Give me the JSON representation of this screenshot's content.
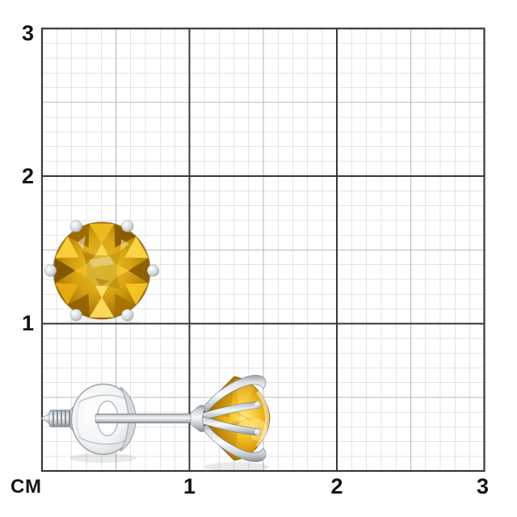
{
  "figure": {
    "unit_label": "СМ",
    "x_axis_labels": [
      "1",
      "2",
      "3"
    ],
    "y_axis_labels": [
      "3",
      "2",
      "1"
    ],
    "grid_colors": {
      "background": "#ffffff",
      "minor": "#c9c9c9",
      "mid": "#8e8e8e",
      "major": "#383838",
      "label": "#141414"
    },
    "front_earring": {
      "prong_count": 6,
      "gem_shape": "round"
    },
    "gem_palette": {
      "outer_facets": [
        "#8a5c00",
        "#f7c826",
        "#a87200",
        "#ffdf5e",
        "#916200",
        "#e8ae12",
        "#7d5200",
        "#ffd23f",
        "#9a6a00",
        "#f0bc1e",
        "#855800",
        "#ffda4d"
      ],
      "star_facets": [
        "#f5c832",
        "#c3920e",
        "#ffe470",
        "#d7a814",
        "#eebd26",
        "#b8860b",
        "#ffdd5c",
        "#cf9c10"
      ],
      "table": "#d9b32e",
      "bright": "#ffe98c",
      "deep": "#7c5300",
      "girdle": "#5f3f00"
    },
    "metal_palette": {
      "white": "#fbfcfd",
      "light": "#dde1e4",
      "mid": "#aab1b7",
      "dark": "#7d848a",
      "outline": "#9aa0a6"
    }
  }
}
